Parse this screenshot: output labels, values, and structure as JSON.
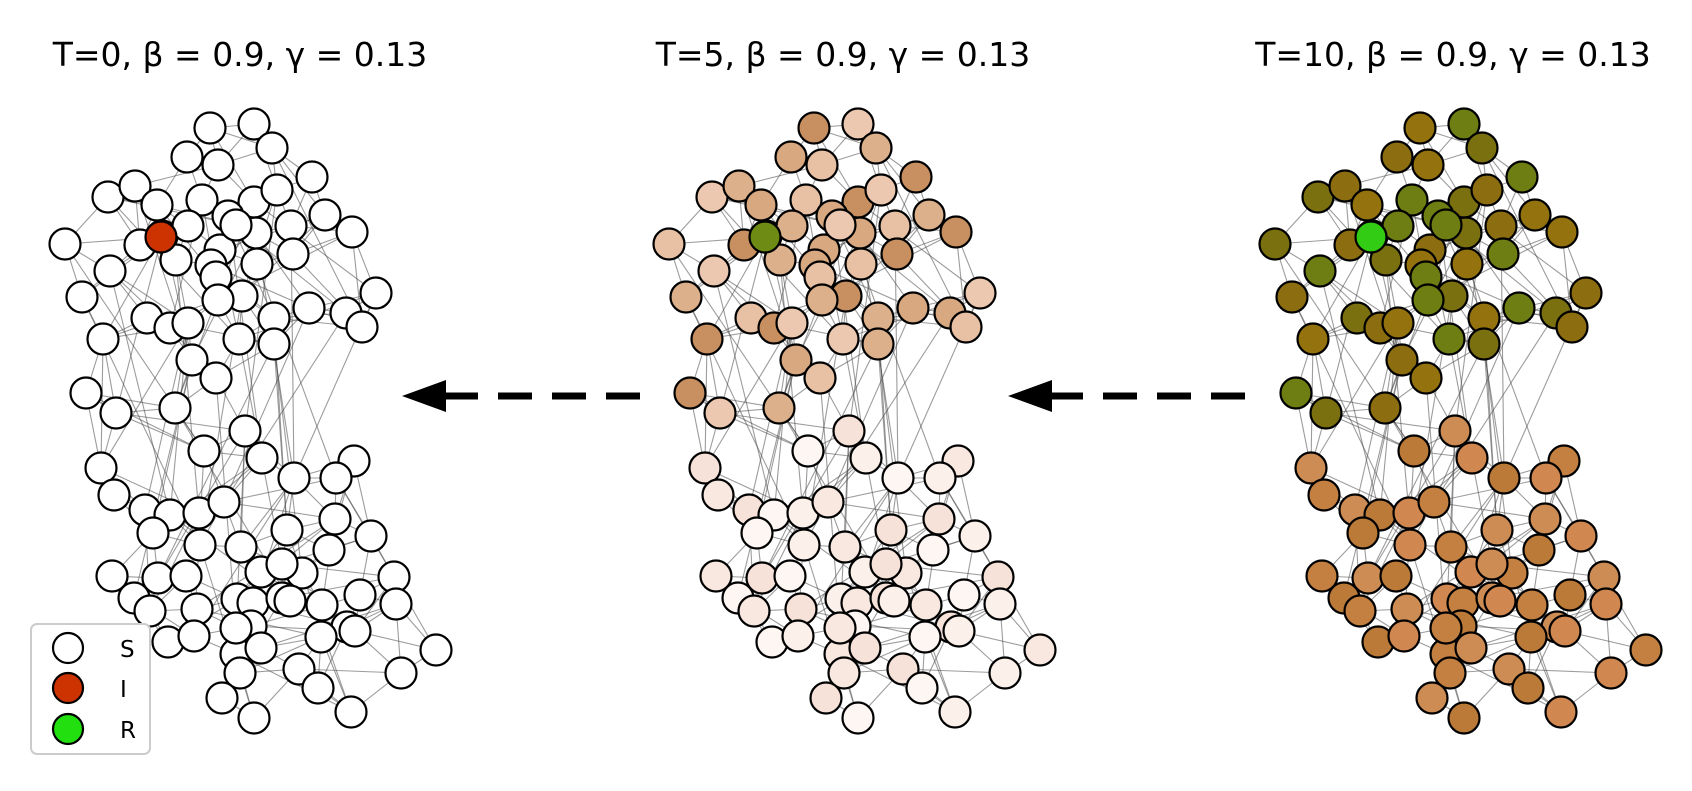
{
  "panels": [
    {
      "id": "t0",
      "title_text": "T=0, ",
      "params_text": "β = 0.9, γ = 0.13",
      "theme": "t0"
    },
    {
      "id": "t5",
      "title_text": "T=5, ",
      "params_text": "β = 0.9, γ = 0.13",
      "theme": "t5"
    },
    {
      "id": "t10",
      "title_text": "T=10, ",
      "params_text": "β = 0.9, γ = 0.13",
      "theme": "t10"
    }
  ],
  "legend": {
    "items": [
      {
        "label": "S",
        "color": "#ffffff"
      },
      {
        "label": "I",
        "color": "#cc3300"
      },
      {
        "label": "R",
        "color": "#22e010"
      }
    ]
  },
  "colors": {
    "susceptible": "#ffffff",
    "infected": "#cc3300",
    "recovered_seed": "#33cc14",
    "t5_upper_palette": [
      "#ecc8b0",
      "#e8c0a4",
      "#dcb08a",
      "#c89060",
      "#d8a880"
    ],
    "t5_lower_palette": [
      "#f8e8e0",
      "#fbf0ea",
      "#fdf6f2",
      "#f6e2d8"
    ],
    "t5_recovered": "#6e8c14",
    "t10_upper_palette": [
      "#8c6e10",
      "#7a7010",
      "#6e7e12",
      "#94720e"
    ],
    "t10_lower_palette": [
      "#c48040",
      "#d08850",
      "#bc7a38",
      "#cc8c54"
    ],
    "arrow": "#000000"
  },
  "arrows": [
    {
      "from_panel": "t5",
      "to_panel": "t0",
      "style": "dashed"
    },
    {
      "from_panel": "t10",
      "to_panel": "t5",
      "style": "dashed"
    }
  ]
}
